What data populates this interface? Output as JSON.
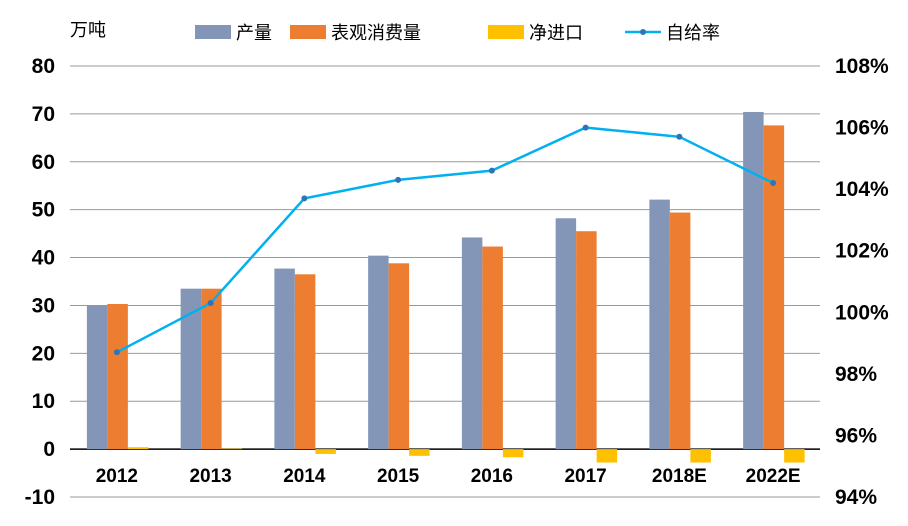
{
  "chart_data": {
    "type": "bar",
    "ylabel": "万吨",
    "categories": [
      "2012",
      "2013",
      "2014",
      "2015",
      "2016",
      "2017",
      "2018E",
      "2022E"
    ],
    "ylim": [
      -10,
      80
    ],
    "yticks": [
      "-10",
      "0",
      "10",
      "20",
      "30",
      "40",
      "50",
      "60",
      "70",
      "80"
    ],
    "y2lim": [
      94,
      108
    ],
    "y2ticks": [
      "94%",
      "96%",
      "98%",
      "100%",
      "102%",
      "104%",
      "106%",
      "108%"
    ],
    "grid": true,
    "legend": "top",
    "series": [
      {
        "name": "产量",
        "type": "bar",
        "axis": "left",
        "color": "#8496B8",
        "values": [
          30.0,
          33.5,
          37.7,
          40.4,
          44.2,
          48.2,
          52.1,
          70.4
        ]
      },
      {
        "name": "表观消费量",
        "type": "bar",
        "axis": "left",
        "color": "#ED7D31",
        "values": [
          30.3,
          33.5,
          36.5,
          38.8,
          42.3,
          45.5,
          49.4,
          67.6
        ]
      },
      {
        "name": "净进口",
        "type": "bar",
        "axis": "left",
        "color": "#FFC000",
        "values": [
          0.4,
          0.1,
          -1.0,
          -1.4,
          -1.7,
          -2.8,
          -2.8,
          -2.8
        ]
      },
      {
        "name": "自给率",
        "type": "line",
        "axis": "right",
        "color": "#00B0F0",
        "values": [
          98.7,
          100.3,
          103.7,
          104.3,
          104.6,
          106.0,
          105.7,
          104.2
        ]
      }
    ]
  }
}
